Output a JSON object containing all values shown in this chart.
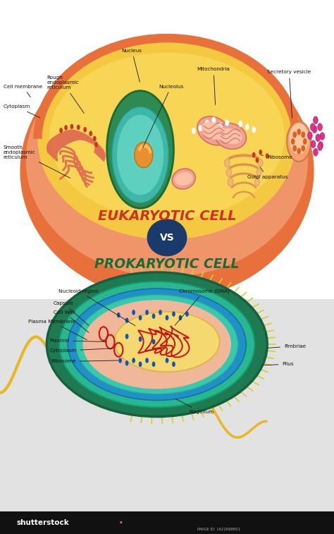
{
  "bg_top": "#ffffff",
  "bg_bottom": "#e2e2e2",
  "euk_title": "EUKARYOTIC CELL",
  "euk_title_color": "#cc3322",
  "vs_text": "VS",
  "vs_bg": "#1a3a6b",
  "vs_text_color": "#ffffff",
  "prok_title": "PROKARYOTIC CELL",
  "prok_title_color": "#1a6b35",
  "label_color": "#111111",
  "shutterstock_bar": "#111111",
  "image_id": "IMAGE ID: 1622698801"
}
